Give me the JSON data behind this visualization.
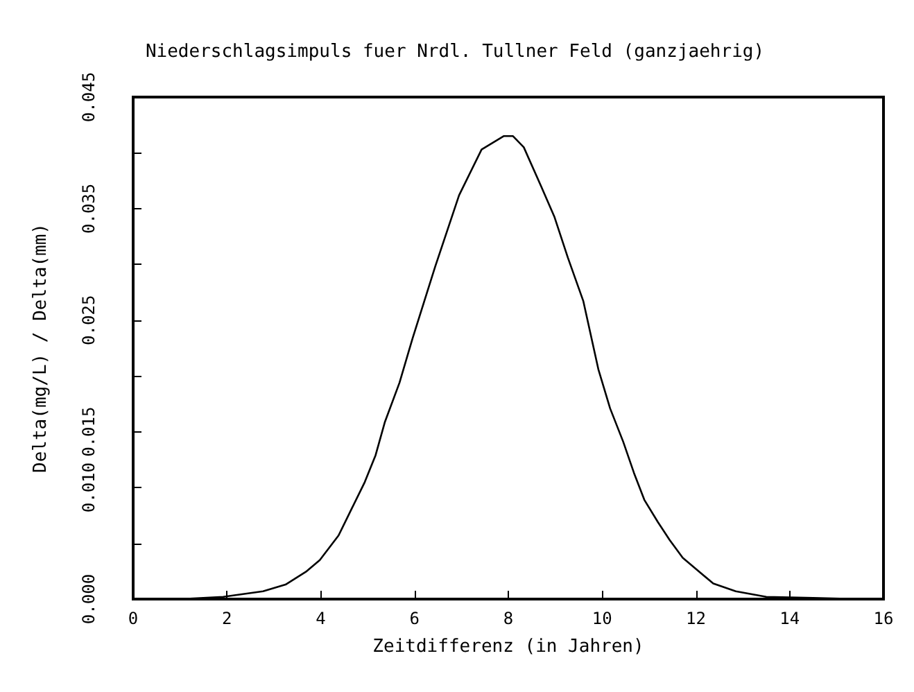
{
  "chart_data": {
    "type": "line",
    "title": "Niederschlagsimpuls fuer Nrdl. Tullner Feld (ganzjaehrig)",
    "xlabel": "Zeitdifferenz (in Jahren)",
    "ylabel": "Delta(mg/L) / Delta(mm)",
    "xlim": [
      0,
      16
    ],
    "xticks": [
      0,
      2,
      4,
      6,
      8,
      10,
      12,
      14,
      16
    ],
    "ylim": [
      0,
      0.045
    ],
    "yticks": [
      {
        "value": 0,
        "label": "0.000"
      },
      {
        "value": 0.005,
        "label": null
      },
      {
        "value": 0.01,
        "label": "0.010"
      },
      0.015,
      {
        "value": 0.02,
        "label": null
      },
      0.025,
      {
        "value": 0.03,
        "label": null
      },
      0.035,
      {
        "value": 0.04,
        "label": null
      },
      0.045
    ],
    "grid": false,
    "marker": "none",
    "line_style": "solid",
    "series": [
      {
        "color": "#000000",
        "x": [
          0,
          1,
          1.92,
          2.77,
          3.25,
          3.7,
          3.98,
          4.38,
          4.66,
          4.94,
          5.17,
          5.37,
          5.68,
          5.96,
          6.44,
          6.95,
          7.43,
          7.9,
          8.1,
          8.33,
          8.7,
          8.98,
          9.27,
          9.6,
          9.92,
          10.17,
          10.45,
          10.68,
          10.9,
          11.19,
          11.44,
          11.72,
          12,
          12.37,
          12.85,
          13.5,
          14.5,
          15.5
        ],
        "values": [
          0,
          0,
          0.0002,
          0.0007,
          0.0013,
          0.0025,
          0.0035,
          0.0057,
          0.0081,
          0.0105,
          0.0129,
          0.0159,
          0.0194,
          0.0234,
          0.0298,
          0.0362,
          0.0403,
          0.0415,
          0.0415,
          0.0405,
          0.037,
          0.0343,
          0.0306,
          0.0267,
          0.0206,
          0.0171,
          0.0141,
          0.0113,
          0.0089,
          0.0069,
          0.0053,
          0.0037,
          0.0027,
          0.0014,
          0.0007,
          0.0002,
          0.0001,
          0
        ]
      }
    ]
  }
}
